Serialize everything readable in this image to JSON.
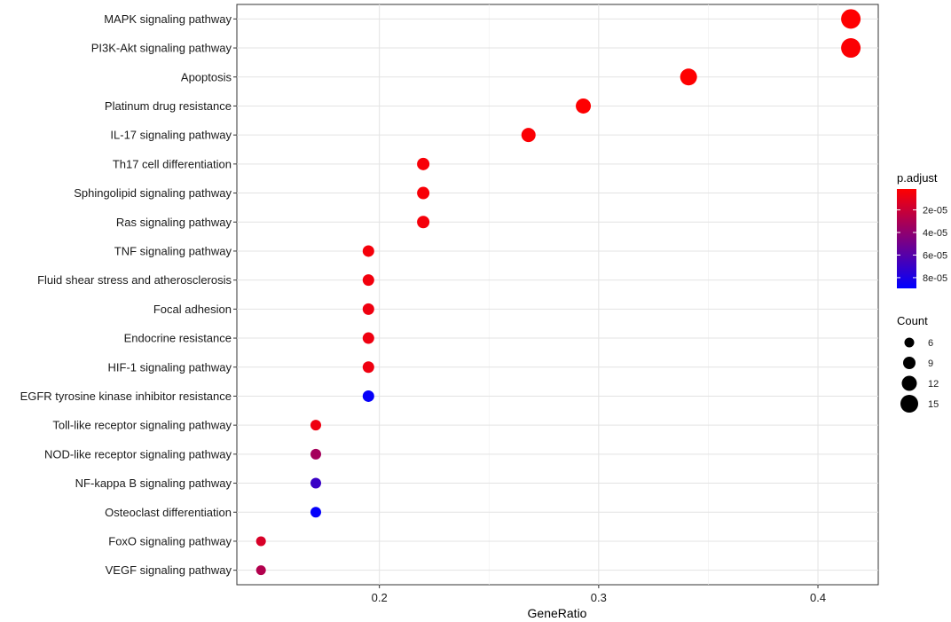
{
  "chart_data": {
    "type": "scatter",
    "xlabel": "GeneRatio",
    "ylabel": "",
    "xlim": [
      0.135,
      0.4275
    ],
    "x_ticks": [
      0.2,
      0.3,
      0.4
    ],
    "x_tick_labels": [
      "0.2",
      "0.3",
      "0.4"
    ],
    "grid": true,
    "categories": [
      "MAPK signaling pathway",
      "PI3K-Akt signaling pathway",
      "Apoptosis",
      "Platinum drug resistance",
      "IL-17 signaling pathway",
      "Th17 cell differentiation",
      "Sphingolipid signaling pathway",
      "Ras signaling pathway",
      "TNF signaling pathway",
      "Fluid shear stress and atherosclerosis",
      "Focal adhesion",
      "Endocrine resistance",
      "HIF-1 signaling pathway",
      "EGFR tyrosine kinase inhibitor resistance",
      "Toll-like receptor signaling pathway",
      "NOD-like receptor signaling pathway",
      "NF-kappa B signaling pathway",
      "Osteoclast differentiation",
      "FoxO signaling pathway",
      "VEGF signaling pathway"
    ],
    "points": [
      {
        "pathway": "MAPK signaling pathway",
        "gene_ratio": 0.415,
        "count": 17,
        "p_adjust": 2e-06
      },
      {
        "pathway": "PI3K-Akt signaling pathway",
        "gene_ratio": 0.415,
        "count": 17,
        "p_adjust": 3e-06
      },
      {
        "pathway": "Apoptosis",
        "gene_ratio": 0.341,
        "count": 14,
        "p_adjust": 2e-06
      },
      {
        "pathway": "Platinum drug resistance",
        "gene_ratio": 0.293,
        "count": 12,
        "p_adjust": 2e-06
      },
      {
        "pathway": "IL-17 signaling pathway",
        "gene_ratio": 0.268,
        "count": 11,
        "p_adjust": 3e-06
      },
      {
        "pathway": "Th17 cell differentiation",
        "gene_ratio": 0.22,
        "count": 9,
        "p_adjust": 4e-06
      },
      {
        "pathway": "Sphingolipid signaling pathway",
        "gene_ratio": 0.22,
        "count": 9,
        "p_adjust": 4e-06
      },
      {
        "pathway": "Ras signaling pathway",
        "gene_ratio": 0.22,
        "count": 9,
        "p_adjust": 5e-06
      },
      {
        "pathway": "TNF signaling pathway",
        "gene_ratio": 0.195,
        "count": 8,
        "p_adjust": 5e-06
      },
      {
        "pathway": "Fluid shear stress and atherosclerosis",
        "gene_ratio": 0.195,
        "count": 8,
        "p_adjust": 6e-06
      },
      {
        "pathway": "Focal adhesion",
        "gene_ratio": 0.195,
        "count": 8,
        "p_adjust": 7e-06
      },
      {
        "pathway": "Endocrine resistance",
        "gene_ratio": 0.195,
        "count": 8,
        "p_adjust": 7e-06
      },
      {
        "pathway": "HIF-1 signaling pathway",
        "gene_ratio": 0.195,
        "count": 8,
        "p_adjust": 7e-06
      },
      {
        "pathway": "EGFR tyrosine kinase inhibitor resistance",
        "gene_ratio": 0.195,
        "count": 8,
        "p_adjust": 8.75e-05
      },
      {
        "pathway": "Toll-like receptor signaling pathway",
        "gene_ratio": 0.171,
        "count": 7,
        "p_adjust": 7e-06
      },
      {
        "pathway": "NOD-like receptor signaling pathway",
        "gene_ratio": 0.171,
        "count": 7,
        "p_adjust": 3.3e-05
      },
      {
        "pathway": "NF-kappa B signaling pathway",
        "gene_ratio": 0.171,
        "count": 7,
        "p_adjust": 7e-05
      },
      {
        "pathway": "Osteoclast differentiation",
        "gene_ratio": 0.171,
        "count": 7,
        "p_adjust": 8.8e-05
      },
      {
        "pathway": "FoxO signaling pathway",
        "gene_ratio": 0.146,
        "count": 6,
        "p_adjust": 1.5e-05
      },
      {
        "pathway": "VEGF signaling pathway",
        "gene_ratio": 0.146,
        "count": 6,
        "p_adjust": 2.8e-05
      }
    ],
    "color_legend": {
      "title": "p.adjust",
      "low_color": "#FF0000",
      "high_color": "#0000FF",
      "range": [
        1.5e-06,
        8.95e-05
      ],
      "ticks": [
        2e-05,
        4e-05,
        6e-05,
        8e-05
      ],
      "tick_labels": [
        "2e-05",
        "4e-05",
        "6e-05",
        "8e-05"
      ],
      "placement": "right"
    },
    "size_legend": {
      "title": "Count",
      "values": [
        6,
        9,
        12,
        15
      ],
      "labels": [
        "6",
        "9",
        "12",
        "15"
      ],
      "size_range": [
        6,
        17
      ],
      "placement": "right"
    }
  }
}
